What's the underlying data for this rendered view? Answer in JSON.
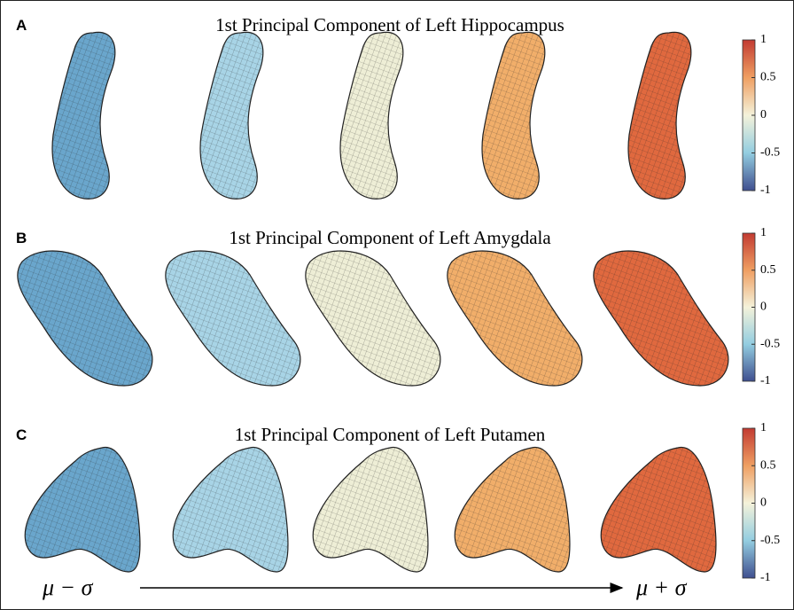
{
  "panels": [
    {
      "letter": "A",
      "title": "1st Principal Component of Left Hippocampus",
      "colorbar_ticks": [
        1,
        0.5,
        0,
        -0.5,
        -1
      ]
    },
    {
      "letter": "B",
      "title": "1st Principal Component of Left Amygdala",
      "colorbar_ticks": [
        1,
        0.5,
        0,
        -0.5,
        -1
      ]
    },
    {
      "letter": "C",
      "title": "1st Principal Component of Left Putamen",
      "colorbar_ticks": [
        1,
        0.5,
        0,
        -0.5,
        -1
      ]
    }
  ],
  "axis": {
    "start_label": "μ − σ",
    "end_label": "μ + σ"
  }
}
